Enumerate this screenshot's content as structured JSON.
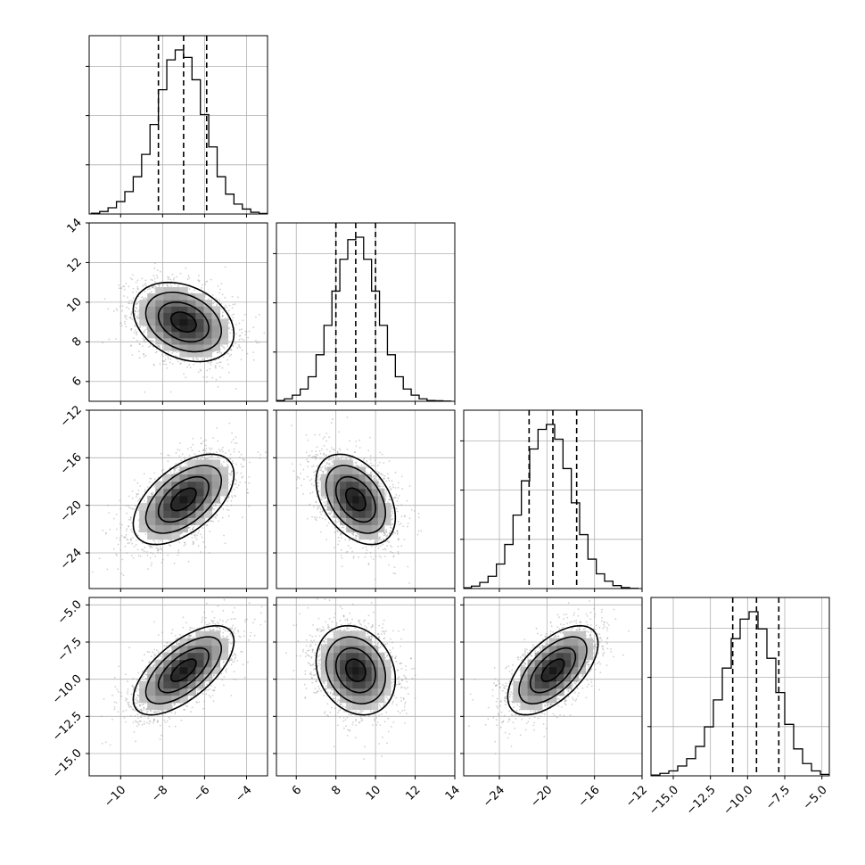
{
  "chart_data": {
    "type": "corner",
    "grid": true,
    "parameters": [
      {
        "mean": -7.0,
        "sd": 1.2,
        "range": [
          -11.5,
          -3.0
        ],
        "ticks": [
          -10,
          -8,
          -6,
          -4
        ],
        "tick_labels": [
          "−10",
          "−8",
          "−6",
          "−4"
        ],
        "quantiles": [
          -8.2,
          -7.0,
          -5.9
        ]
      },
      {
        "mean": 9.0,
        "sd": 1.0,
        "range": [
          5.0,
          14.0
        ],
        "ticks": [
          6,
          8,
          10,
          12,
          14
        ],
        "tick_labels": [
          "6",
          "8",
          "10",
          "12",
          "14"
        ],
        "quantiles": [
          8.0,
          9.0,
          10.0
        ]
      },
      {
        "mean": -19.5,
        "sd": 1.9,
        "range": [
          -27.0,
          -12.0
        ],
        "ticks": [
          -24,
          -20,
          -16,
          -12
        ],
        "tick_labels": [
          "−24",
          "−20",
          "−16",
          "−12"
        ],
        "quantiles": [
          -21.5,
          -19.5,
          -17.5
        ]
      },
      {
        "mean": -9.4,
        "sd": 1.5,
        "range": [
          -16.5,
          -4.5
        ],
        "ticks": [
          -15.0,
          -12.5,
          -10.0,
          -7.5,
          -5.0
        ],
        "tick_labels": [
          "−15.0",
          "−12.5",
          "−10.0",
          "−7.5",
          "−5.0"
        ],
        "quantiles": [
          -11.0,
          -9.4,
          -7.9
        ]
      }
    ],
    "y_ticks": {
      "1": {
        "ticks": [
          6,
          8,
          10,
          12,
          14
        ],
        "tick_labels": [
          "6",
          "8",
          "10",
          "12",
          "14"
        ]
      },
      "2": {
        "ticks": [
          -24,
          -20,
          -16,
          -12
        ],
        "tick_labels": [
          "−24",
          "−20",
          "−16",
          "−12"
        ]
      },
      "3": {
        "ticks": [
          -15.0,
          -12.5,
          -10.0,
          -7.5,
          -5.0
        ],
        "tick_labels": [
          "−15.0",
          "−12.5",
          "−10.0",
          "−7.5",
          "−5.0"
        ]
      }
    },
    "correlations": {
      "1-0": -0.3,
      "2-0": 0.55,
      "2-1": -0.4,
      "3-0": 0.65,
      "3-1": -0.2,
      "3-2": 0.6
    },
    "histograms": [
      {
        "bin_centers": [
          -11.2,
          -10.8,
          -10.4,
          -10.0,
          -9.6,
          -9.2,
          -8.8,
          -8.4,
          -8.0,
          -7.6,
          -7.2,
          -6.8,
          -6.4,
          -6.0,
          -5.6,
          -5.2,
          -4.8,
          -4.4,
          -4.0,
          -3.6,
          -3.2
        ],
        "counts": [
          0.3,
          1,
          2.5,
          5,
          9,
          15,
          24,
          36,
          50,
          62,
          66,
          63,
          54,
          40,
          27,
          15,
          8,
          4,
          2,
          0.7,
          0.2
        ]
      },
      {
        "bin_centers": [
          5.2,
          5.6,
          6.0,
          6.4,
          6.8,
          7.2,
          7.6,
          8.0,
          8.4,
          8.8,
          9.2,
          9.6,
          10.0,
          10.4,
          10.8,
          11.2,
          11.6,
          12.0,
          12.4,
          12.8,
          13.2,
          13.6
        ],
        "counts": [
          0.3,
          1,
          2.5,
          5,
          10,
          19,
          31,
          45,
          58,
          66,
          67,
          58,
          45,
          31,
          19,
          10,
          5,
          2.5,
          1,
          0.3,
          0.2,
          0.1
        ]
      },
      {
        "bin_centers": [
          -26.7,
          -26.0,
          -25.3,
          -24.6,
          -23.9,
          -23.2,
          -22.5,
          -21.8,
          -21.1,
          -20.4,
          -19.7,
          -19.0,
          -18.3,
          -17.6,
          -16.9,
          -16.2,
          -15.5,
          -14.8,
          -14.1,
          -13.4,
          -12.7
        ],
        "counts": [
          0.3,
          1,
          2.5,
          5,
          10,
          18,
          30,
          44,
          57,
          65,
          67,
          61,
          49,
          35,
          22,
          12,
          6,
          3,
          1.2,
          0.4,
          0.1
        ]
      },
      {
        "bin_centers": [
          -16.2,
          -15.6,
          -15.0,
          -14.4,
          -13.8,
          -13.2,
          -12.6,
          -12.0,
          -11.4,
          -10.8,
          -10.2,
          -9.6,
          -9.0,
          -8.4,
          -7.8,
          -7.2,
          -6.6,
          -6.0,
          -5.4,
          -4.8
        ],
        "counts": [
          0.3,
          1,
          2,
          4,
          7,
          12,
          20,
          31,
          44,
          56,
          64,
          67,
          60,
          48,
          34,
          21,
          11,
          5,
          2,
          0.6
        ]
      }
    ]
  }
}
